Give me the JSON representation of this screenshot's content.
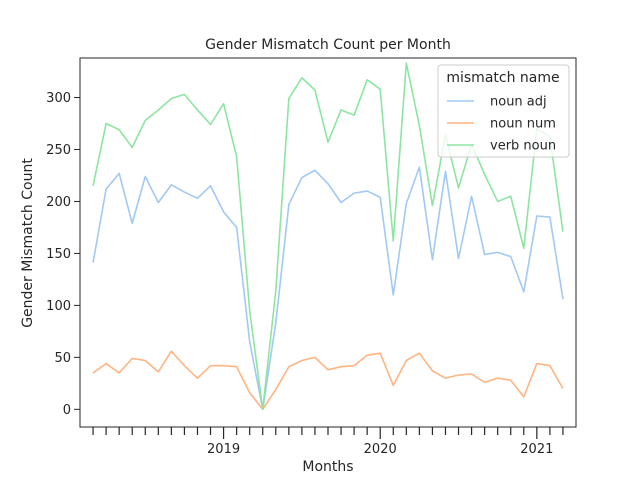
{
  "chart_data": {
    "type": "line",
    "title": "Gender Mismatch Count per Month",
    "xlabel": "Months",
    "ylabel": "Gender Mismatch Count",
    "x": [
      "2018-03",
      "2018-04",
      "2018-05",
      "2018-06",
      "2018-07",
      "2018-08",
      "2018-09",
      "2018-10",
      "2018-11",
      "2018-12",
      "2019-01",
      "2019-02",
      "2019-03",
      "2019-04",
      "2019-05",
      "2019-06",
      "2019-07",
      "2019-08",
      "2019-09",
      "2019-10",
      "2019-11",
      "2019-12",
      "2020-01",
      "2020-02",
      "2020-03",
      "2020-04",
      "2020-05",
      "2020-06",
      "2020-07",
      "2020-08",
      "2020-09",
      "2020-10",
      "2020-11",
      "2020-12",
      "2021-01",
      "2021-02",
      "2021-03"
    ],
    "x_tick_labels": [
      {
        "date": "2019-01",
        "label": "2019"
      },
      {
        "date": "2020-01",
        "label": "2020"
      },
      {
        "date": "2021-01",
        "label": "2021"
      }
    ],
    "minor_tick_dates": [
      "2018-03",
      "2018-04",
      "2018-05",
      "2018-06",
      "2018-07",
      "2018-08",
      "2018-09",
      "2018-10",
      "2018-11",
      "2018-12",
      "2019-02",
      "2019-03",
      "2019-04",
      "2019-05",
      "2019-06",
      "2019-07",
      "2019-08",
      "2019-09",
      "2019-10",
      "2019-11",
      "2019-12",
      "2020-02",
      "2020-03",
      "2020-04",
      "2020-05",
      "2020-06",
      "2020-07",
      "2020-08",
      "2020-09",
      "2020-10",
      "2020-11",
      "2020-12",
      "2021-02",
      "2021-03"
    ],
    "xlim": [
      "2018-02",
      "2021-04"
    ],
    "ylim": [
      -17,
      338
    ],
    "y_ticks": [
      0,
      50,
      100,
      150,
      200,
      250,
      300
    ],
    "grid": false,
    "legend": {
      "title": "mismatch name",
      "placement": "top-right"
    },
    "series": [
      {
        "name": "noun adj",
        "color": "#a1c9f4",
        "values": [
          141,
          212,
          227,
          179,
          224,
          199,
          216,
          209,
          203,
          215,
          190,
          175,
          65,
          0,
          83,
          197,
          223,
          230,
          217,
          199,
          208,
          210,
          204,
          110,
          198,
          233,
          144,
          229,
          145,
          205,
          149,
          151,
          147,
          113,
          186,
          185,
          106
        ]
      },
      {
        "name": "noun num",
        "color": "#ffb482",
        "values": [
          35,
          44,
          35,
          49,
          47,
          36,
          56,
          42,
          30,
          42,
          42,
          41,
          16,
          0,
          19,
          41,
          47,
          50,
          38,
          41,
          42,
          52,
          54,
          23,
          47,
          54,
          37,
          30,
          33,
          34,
          26,
          30,
          28,
          12,
          44,
          42,
          20
        ]
      },
      {
        "name": "verb noun",
        "color": "#8de5a1",
        "values": [
          215,
          275,
          269,
          252,
          278,
          288,
          299,
          303,
          288,
          274,
          294,
          243,
          95,
          0,
          114,
          299,
          319,
          307,
          257,
          288,
          283,
          317,
          308,
          162,
          333,
          273,
          196,
          264,
          213,
          255,
          226,
          200,
          205,
          155,
          270,
          262,
          171
        ]
      }
    ]
  }
}
